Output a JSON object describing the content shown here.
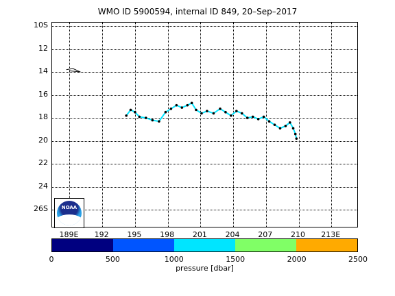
{
  "title": "WMO ID 5900594, internal ID 849, 20–Sep–2017",
  "map": {
    "lat_labels": [
      "10S",
      "12",
      "14",
      "16",
      "18",
      "20",
      "22",
      "24",
      "26S"
    ],
    "lon_labels": [
      "189E",
      "192",
      "195",
      "198",
      "201",
      "204",
      "207",
      "210",
      "213E"
    ],
    "logo_text": "NOAA"
  },
  "colorbar": {
    "colors": [
      "#000080",
      "#0055ff",
      "#00e5ff",
      "#80ff66",
      "#ffaa00"
    ],
    "tick_labels": [
      "0",
      "500",
      "1000",
      "1500",
      "2000",
      "2500"
    ],
    "units_label": "pressure [dbar]"
  },
  "chart_data": {
    "type": "scatter",
    "title": "WMO ID 5900594, internal ID 849, 20–Sep–2017",
    "xlabel": "",
    "ylabel": "",
    "xlim": [
      187.4,
      215.5
    ],
    "ylim": [
      -27.6,
      -9.7
    ],
    "track_lon": [
      194.2,
      194.6,
      195.0,
      195.4,
      196.0,
      196.6,
      197.2,
      197.8,
      198.3,
      198.8,
      199.3,
      199.8,
      200.2,
      200.6,
      201.1,
      201.6,
      202.2,
      202.8,
      203.3,
      203.8,
      204.3,
      204.8,
      205.3,
      205.8,
      206.3,
      206.8,
      207.3,
      207.8,
      208.3,
      208.8,
      209.2,
      209.5,
      209.7,
      209.8
    ],
    "track_lat": [
      -17.8,
      -17.3,
      -17.5,
      -17.9,
      -18.0,
      -18.2,
      -18.3,
      -17.5,
      -17.2,
      -16.9,
      -17.1,
      -16.9,
      -16.7,
      -17.3,
      -17.6,
      -17.4,
      -17.6,
      -17.2,
      -17.5,
      -17.8,
      -17.4,
      -17.6,
      -18.0,
      -17.9,
      -18.1,
      -17.9,
      -18.3,
      -18.6,
      -18.9,
      -18.7,
      -18.4,
      -18.9,
      -19.4,
      -19.8
    ],
    "pressure_bins": [
      0,
      500,
      1000,
      1500,
      2000,
      2500
    ]
  }
}
